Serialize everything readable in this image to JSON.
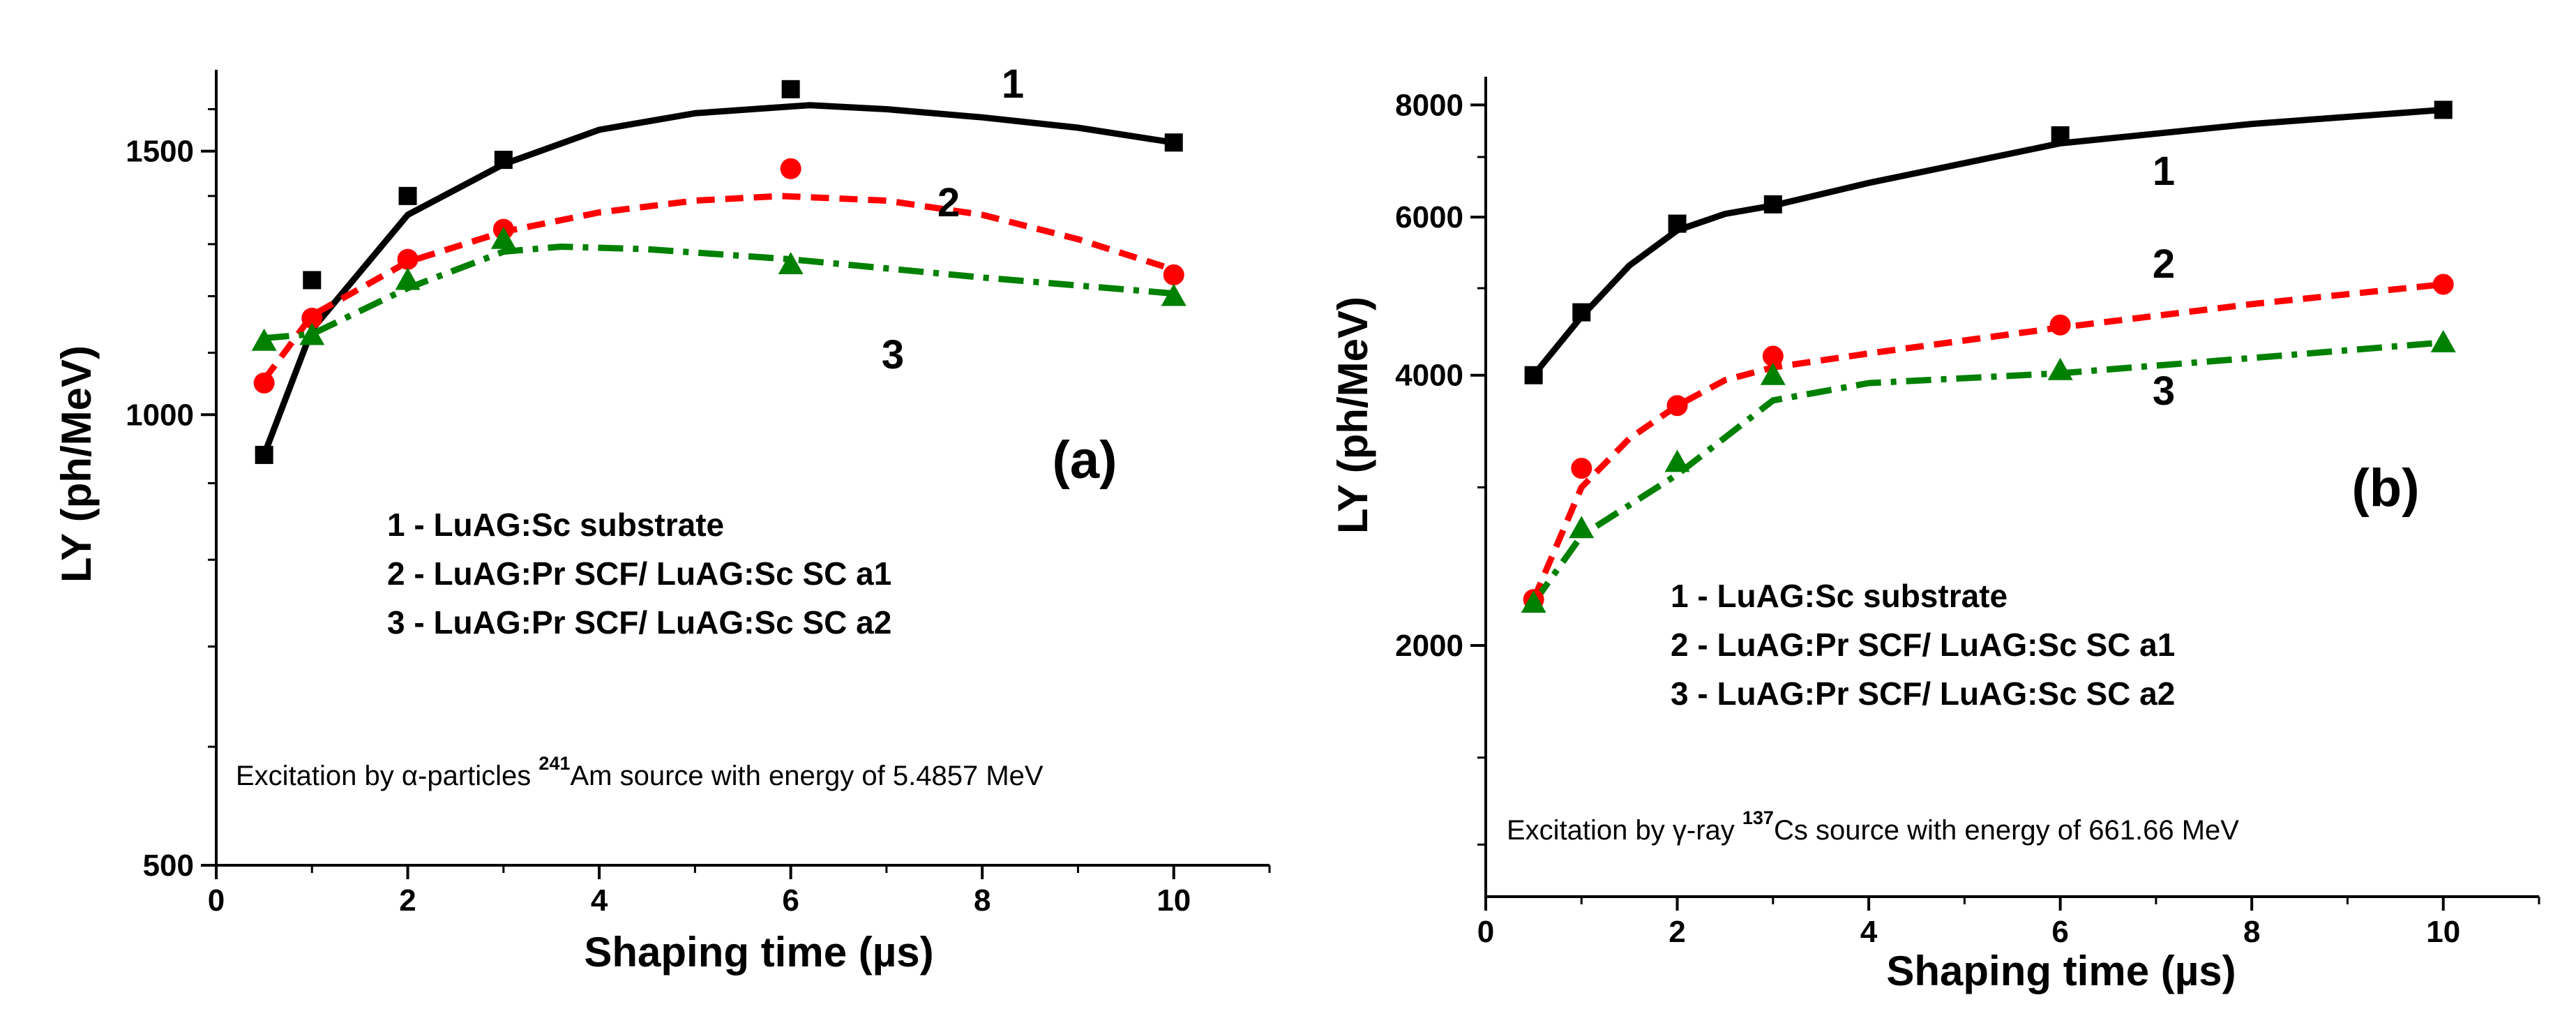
{
  "chart_data": [
    {
      "type": "line",
      "panel_label": "(a)",
      "xlabel": "Shaping time (µs)",
      "ylabel": "LY (ph/MeV)",
      "xlim": [
        0,
        11
      ],
      "ylim": [
        500,
        1700
      ],
      "yscale": "log",
      "x_ticks": [
        0,
        2,
        4,
        6,
        8,
        10
      ],
      "x_tick_labels": [
        "0",
        "2",
        "4",
        "6",
        "8",
        "10"
      ],
      "y_ticks": [
        500,
        1000,
        1500
      ],
      "y_tick_labels": [
        "500",
        "1000",
        "1500"
      ],
      "y_minor_ticks": [
        600,
        700,
        800,
        900,
        1100,
        1200,
        1300,
        1400,
        1600
      ],
      "series": [
        {
          "name": "1",
          "color": "#000000",
          "marker": "square",
          "line": "solid",
          "x": [
            0.5,
            1,
            2,
            3,
            6,
            10
          ],
          "values": [
            940,
            1230,
            1400,
            1480,
            1650,
            1520
          ],
          "fit": [
            [
              0.5,
              940
            ],
            [
              1,
              1140
            ],
            [
              2,
              1360
            ],
            [
              3,
              1470
            ],
            [
              4,
              1550
            ],
            [
              5,
              1590
            ],
            [
              6.2,
              1610
            ],
            [
              7,
              1600
            ],
            [
              8,
              1580
            ],
            [
              9,
              1555
            ],
            [
              10,
              1520
            ]
          ]
        },
        {
          "name": "2",
          "color": "#ff0000",
          "marker": "circle",
          "line": "dashed",
          "x": [
            0.5,
            1,
            2,
            3,
            6,
            10
          ],
          "values": [
            1050,
            1160,
            1270,
            1330,
            1460,
            1240
          ],
          "fit": [
            [
              0.5,
              1055
            ],
            [
              1,
              1165
            ],
            [
              2,
              1265
            ],
            [
              3,
              1325
            ],
            [
              4,
              1365
            ],
            [
              5,
              1390
            ],
            [
              5.9,
              1400
            ],
            [
              7,
              1390
            ],
            [
              8,
              1360
            ],
            [
              9,
              1310
            ],
            [
              10,
              1250
            ]
          ]
        },
        {
          "name": "3",
          "color": "#008000",
          "marker": "triangle",
          "line": "dashdot",
          "x": [
            0.5,
            1,
            2,
            3,
            6,
            10
          ],
          "values": [
            1120,
            1130,
            1230,
            1310,
            1260,
            1200
          ],
          "fit": [
            [
              0.5,
              1125
            ],
            [
              1,
              1132
            ],
            [
              2,
              1215
            ],
            [
              3,
              1285
            ],
            [
              3.6,
              1295
            ],
            [
              4.5,
              1290
            ],
            [
              6,
              1270
            ],
            [
              8,
              1235
            ],
            [
              10,
              1205
            ]
          ]
        }
      ],
      "legend": [
        "1 - LuAG:Sc substrate",
        "2 - LuAG:Pr SCF/ LuAG:Sc SC a1",
        "3 - LuAG:Pr SCF/ LuAG:Sc SC a2"
      ],
      "annotation": {
        "before": "Excitation by α-particles ",
        "sup": "241",
        "after": "Am source with energy of 5.4857 MeV"
      }
    },
    {
      "type": "line",
      "panel_label": "(b)",
      "xlabel": "Shaping time (µs)",
      "ylabel": "LY (ph/MeV)",
      "xlim": [
        0,
        11
      ],
      "ylim": [
        1050,
        8600
      ],
      "yscale": "log",
      "x_ticks": [
        0,
        2,
        4,
        6,
        8,
        10
      ],
      "x_tick_labels": [
        "0",
        "2",
        "4",
        "6",
        "8",
        "10"
      ],
      "y_ticks": [
        2000,
        4000,
        6000,
        8000
      ],
      "y_tick_labels": [
        "2000",
        "4000",
        "6000",
        "8000"
      ],
      "y_minor_ticks": [
        1200,
        1500,
        3000,
        5000,
        7000
      ],
      "series": [
        {
          "name": "1",
          "color": "#000000",
          "marker": "square",
          "line": "solid",
          "x": [
            0.5,
            1,
            2,
            3,
            6,
            10
          ],
          "values": [
            4000,
            4700,
            5900,
            6200,
            7400,
            7900
          ],
          "fit": [
            [
              0.5,
              4000
            ],
            [
              1,
              4650
            ],
            [
              1.5,
              5300
            ],
            [
              2,
              5800
            ],
            [
              2.5,
              6050
            ],
            [
              3,
              6180
            ],
            [
              4,
              6550
            ],
            [
              6,
              7250
            ],
            [
              8,
              7620
            ],
            [
              10,
              7900
            ]
          ]
        },
        {
          "name": "2",
          "color": "#ff0000",
          "marker": "circle",
          "line": "dashed",
          "x": [
            0.5,
            1,
            2,
            3,
            6,
            10
          ],
          "values": [
            2250,
            3150,
            3700,
            4200,
            4550,
            5050
          ],
          "fit": [
            [
              0.5,
              2250
            ],
            [
              1,
              3000
            ],
            [
              1.5,
              3400
            ],
            [
              2,
              3700
            ],
            [
              2.5,
              3950
            ],
            [
              3,
              4080
            ],
            [
              4,
              4230
            ],
            [
              6,
              4520
            ],
            [
              8,
              4800
            ],
            [
              10,
              5050
            ]
          ]
        },
        {
          "name": "3",
          "color": "#008000",
          "marker": "triangle",
          "line": "dashdot",
          "x": [
            0.5,
            1,
            2,
            3,
            6,
            10
          ],
          "values": [
            2230,
            2700,
            3200,
            4000,
            4050,
            4350
          ],
          "fit": [
            [
              0.5,
              2230
            ],
            [
              1,
              2650
            ],
            [
              2,
              3100
            ],
            [
              3,
              3750
            ],
            [
              4,
              3920
            ],
            [
              6,
              4020
            ],
            [
              8,
              4180
            ],
            [
              10,
              4350
            ]
          ]
        }
      ],
      "legend": [
        "1 - LuAG:Sc substrate",
        "2 - LuAG:Pr SCF/ LuAG:Sc SC a1",
        "3 - LuAG:Pr SCF/ LuAG:Sc SC a2"
      ],
      "annotation": {
        "before": "Excitation by γ-ray ",
        "sup": "137",
        "after": "Cs source with energy of 661.66 MeV"
      }
    }
  ]
}
